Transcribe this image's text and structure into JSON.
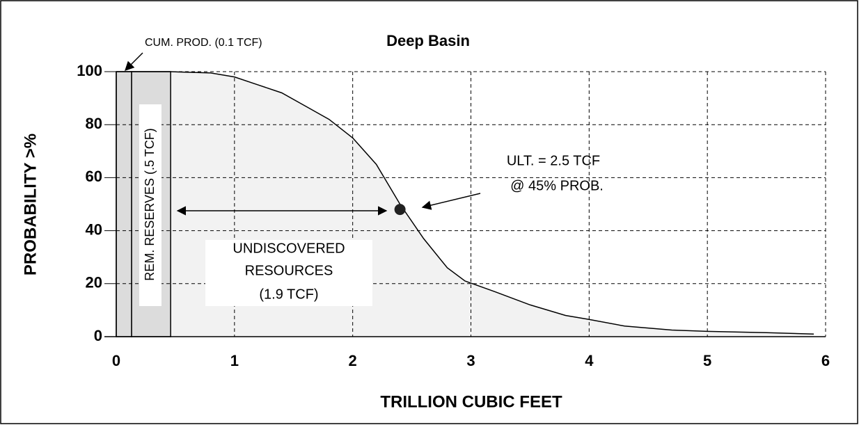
{
  "chart_data": {
    "type": "line",
    "title": "Deep Basin",
    "xlabel": "TRILLION CUBIC FEET",
    "ylabel": "PROBABILITY >%",
    "xlim": [
      0,
      6
    ],
    "ylim": [
      0,
      100
    ],
    "xticks": [
      0,
      1,
      2,
      3,
      4,
      5,
      6
    ],
    "yticks": [
      0,
      20,
      40,
      60,
      80,
      100
    ],
    "grid": true,
    "series": [
      {
        "color": "#000000",
        "x": [
          0,
          0.45,
          0.8,
          1,
          1.2,
          1.4,
          1.6,
          1.8,
          2,
          2.2,
          2.4,
          2.6,
          2.8,
          2.95,
          3.2,
          3.5,
          3.8,
          4,
          4.3,
          4.7,
          5,
          5.5,
          5.9
        ],
        "values": [
          100,
          100,
          99.5,
          98,
          95,
          92,
          87,
          82,
          75,
          65,
          50,
          37,
          26,
          21,
          17,
          12,
          8,
          6.5,
          4,
          2.5,
          2,
          1.5,
          1
        ]
      }
    ],
    "shaded_ranges": [
      {
        "label": "CUM. PROD.  (0.1 TCF)",
        "from": 0,
        "to": 0.13
      },
      {
        "label": "REM. RESERVES (.5 TCF)",
        "from": 0.13,
        "to": 0.46
      }
    ],
    "point": {
      "x": 2.4,
      "y": 48
    },
    "annotations": {
      "ultimate": [
        "ULT. = 2.5 TCF",
        "@ 45% PROB."
      ],
      "undiscovered": [
        "UNDISCOVERED",
        "RESOURCES",
        "(1.9 TCF)"
      ]
    }
  }
}
